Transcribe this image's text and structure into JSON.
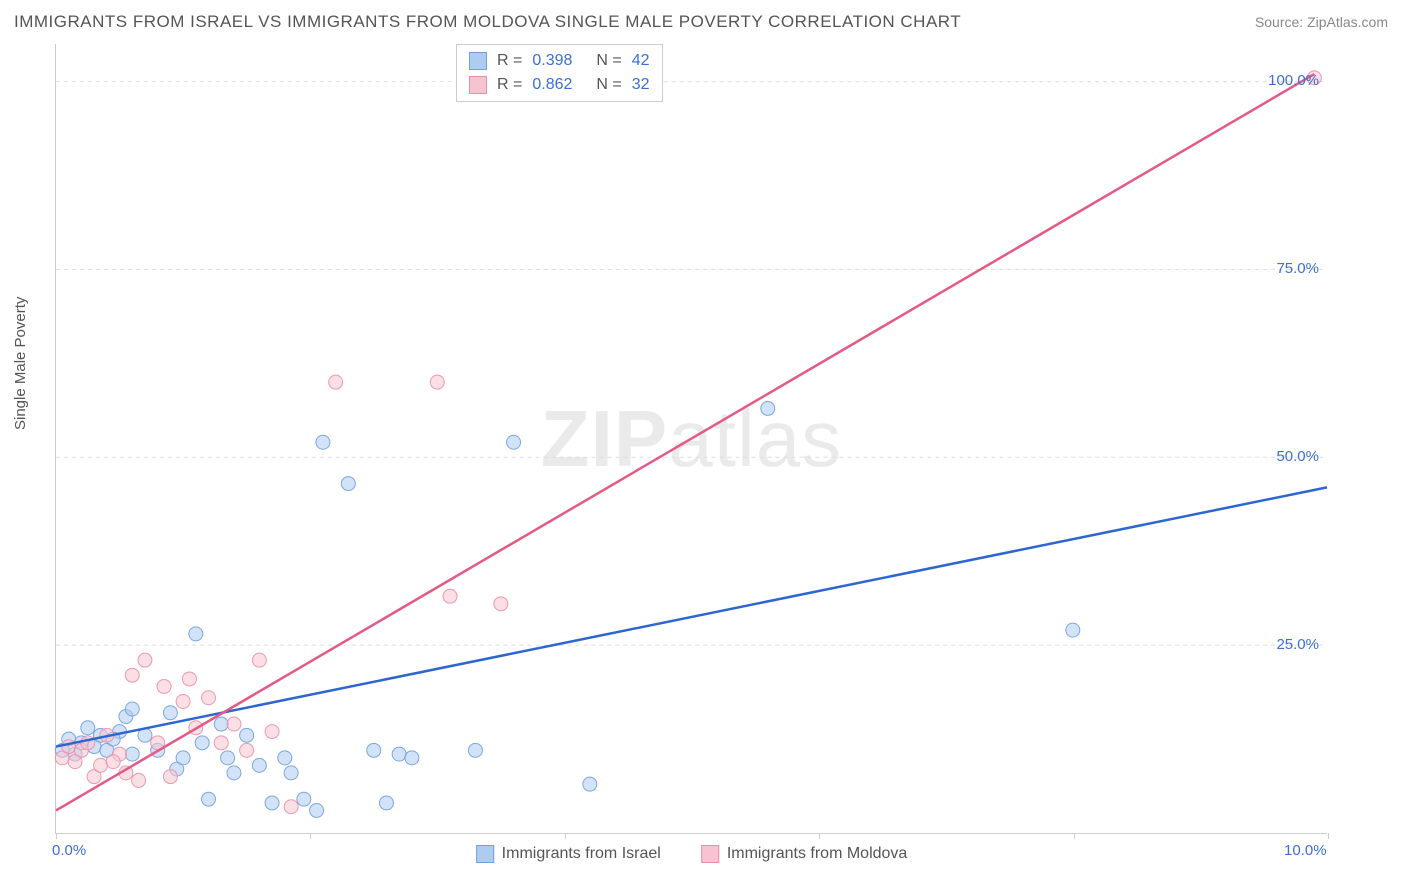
{
  "title": "IMMIGRANTS FROM ISRAEL VS IMMIGRANTS FROM MOLDOVA SINGLE MALE POVERTY CORRELATION CHART",
  "source_label": "Source:",
  "source_value": "ZipAtlas.com",
  "y_axis_label": "Single Male Poverty",
  "watermark_bold": "ZIP",
  "watermark_rest": "atlas",
  "chart": {
    "type": "scatter",
    "background_color": "#ffffff",
    "grid_color": "#dddddd",
    "axis_color": "#cccccc",
    "text_color": "#555555",
    "value_color": "#3b6fd6",
    "xlim": [
      0,
      10
    ],
    "ylim": [
      0,
      105
    ],
    "x_ticks": [
      0,
      2,
      4,
      6,
      8,
      10
    ],
    "x_tick_labels": [
      "0.0%",
      "",
      "",
      "",
      "",
      "10.0%"
    ],
    "y_ticks": [
      25,
      50,
      75,
      100
    ],
    "y_tick_labels": [
      "25.0%",
      "50.0%",
      "75.0%",
      "100.0%"
    ],
    "marker_radius": 7,
    "marker_opacity": 0.55,
    "line_width": 2.5,
    "series": [
      {
        "name": "Immigrants from Israel",
        "color_fill": "#aeccf0",
        "color_stroke": "#6f9fe0",
        "line_color": "#2d66d0",
        "r_value": "0.398",
        "n_value": "42",
        "points": [
          [
            0.05,
            11
          ],
          [
            0.1,
            12.5
          ],
          [
            0.15,
            10.5
          ],
          [
            0.2,
            12
          ],
          [
            0.25,
            14
          ],
          [
            0.3,
            11.5
          ],
          [
            0.35,
            13
          ],
          [
            0.4,
            11
          ],
          [
            0.5,
            13.5
          ],
          [
            0.55,
            15.5
          ],
          [
            0.6,
            16.5
          ],
          [
            0.6,
            10.5
          ],
          [
            0.7,
            13
          ],
          [
            0.8,
            11
          ],
          [
            0.9,
            16
          ],
          [
            0.95,
            8.5
          ],
          [
            1.0,
            10
          ],
          [
            1.1,
            26.5
          ],
          [
            1.15,
            12
          ],
          [
            1.2,
            4.5
          ],
          [
            1.3,
            14.5
          ],
          [
            1.35,
            10
          ],
          [
            1.4,
            8
          ],
          [
            1.5,
            13
          ],
          [
            1.6,
            9
          ],
          [
            1.7,
            4
          ],
          [
            1.8,
            10
          ],
          [
            1.85,
            8
          ],
          [
            1.95,
            4.5
          ],
          [
            2.05,
            3
          ],
          [
            2.1,
            52
          ],
          [
            2.3,
            46.5
          ],
          [
            2.5,
            11
          ],
          [
            2.6,
            4
          ],
          [
            2.7,
            10.5
          ],
          [
            2.8,
            10
          ],
          [
            3.3,
            11
          ],
          [
            3.6,
            52
          ],
          [
            4.2,
            6.5
          ],
          [
            5.6,
            56.5
          ],
          [
            8.0,
            27
          ],
          [
            0.45,
            12.5
          ]
        ],
        "trend_line": {
          "x1": 0,
          "y1": 11.5,
          "x2": 10,
          "y2": 46
        }
      },
      {
        "name": "Immigrants from Moldova",
        "color_fill": "#f5c4d0",
        "color_stroke": "#eb8fa8",
        "line_color": "#e35a85",
        "r_value": "0.862",
        "n_value": "32",
        "points": [
          [
            0.05,
            10
          ],
          [
            0.1,
            11.5
          ],
          [
            0.15,
            9.5
          ],
          [
            0.2,
            11
          ],
          [
            0.25,
            12
          ],
          [
            0.3,
            7.5
          ],
          [
            0.35,
            9
          ],
          [
            0.4,
            13
          ],
          [
            0.5,
            10.5
          ],
          [
            0.55,
            8
          ],
          [
            0.6,
            21
          ],
          [
            0.65,
            7
          ],
          [
            0.7,
            23
          ],
          [
            0.8,
            12
          ],
          [
            0.85,
            19.5
          ],
          [
            0.9,
            7.5
          ],
          [
            1.0,
            17.5
          ],
          [
            1.05,
            20.5
          ],
          [
            1.1,
            14
          ],
          [
            1.2,
            18
          ],
          [
            1.3,
            12
          ],
          [
            1.4,
            14.5
          ],
          [
            1.5,
            11
          ],
          [
            1.6,
            23
          ],
          [
            1.7,
            13.5
          ],
          [
            1.85,
            3.5
          ],
          [
            2.2,
            60
          ],
          [
            3.0,
            60
          ],
          [
            3.1,
            31.5
          ],
          [
            3.5,
            30.5
          ],
          [
            0.45,
            9.5
          ],
          [
            9.9,
            100.5
          ]
        ],
        "trend_line": {
          "x1": 0,
          "y1": 3,
          "x2": 9.9,
          "y2": 101
        }
      }
    ]
  },
  "legend_bottom": [
    {
      "label": "Immigrants from Israel",
      "fill": "#aeccf0",
      "stroke": "#6f9fe0"
    },
    {
      "label": "Immigrants from Moldova",
      "fill": "#f5c4d0",
      "stroke": "#eb8fa8"
    }
  ]
}
